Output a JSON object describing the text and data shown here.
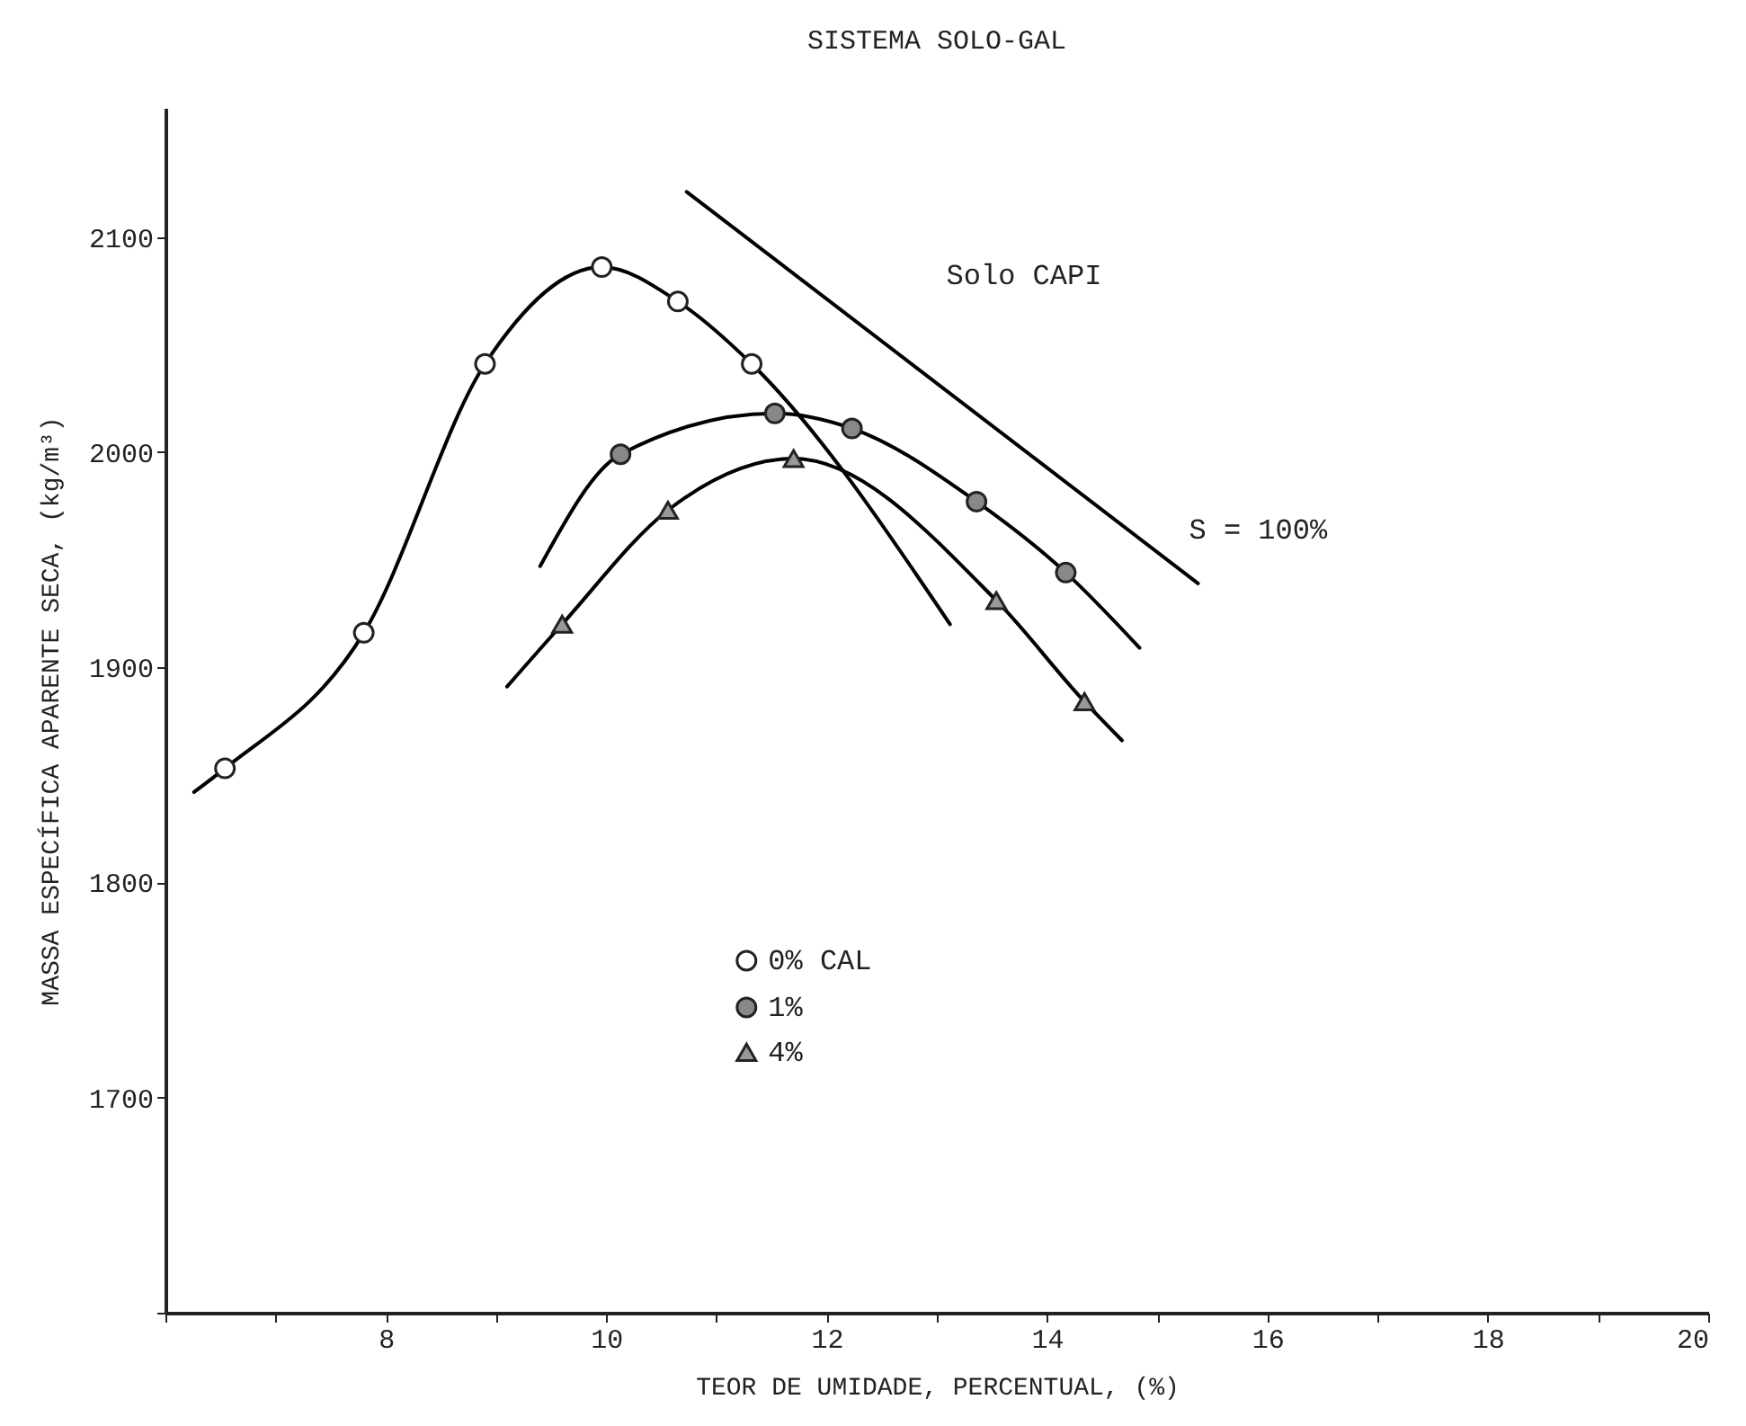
{
  "chart_data": {
    "type": "scatter",
    "title": "SISTEMA SOLO-GAL",
    "xlabel": "TEOR DE UMIDADE, PERCENTUAL, (%)",
    "ylabel": "MASSA ESPECÍFICA APARENTE SECA, (kg/m³)",
    "xlim": [
      6,
      20
    ],
    "xticks": [
      {
        "value": 6,
        "label": null
      },
      {
        "value": 7,
        "label": null
      },
      8,
      {
        "value": 9,
        "label": null
      },
      10,
      {
        "value": 11,
        "label": null
      },
      12,
      {
        "value": 13,
        "label": null
      },
      14,
      {
        "value": 15,
        "label": null
      },
      16,
      {
        "value": 17,
        "label": null
      },
      18,
      {
        "value": 19,
        "label": null
      },
      20
    ],
    "ylim": [
      1600,
      2160
    ],
    "yticks": [
      {
        "value": 1600,
        "label": null
      },
      1700,
      1800,
      1900,
      2000,
      2100
    ],
    "grid": false,
    "legend": "bottom",
    "legend_title": null,
    "series": [
      {
        "name": "0% CAL",
        "marker": "circle",
        "color": "#ffffff",
        "x": [
          6.54,
          7.8,
          8.9,
          9.96,
          10.65,
          11.32
        ],
        "values": [
          1853,
          1916,
          2041,
          2086,
          2070,
          2041
        ]
      },
      {
        "name": "1%",
        "marker": "circle",
        "color": "#888888",
        "x": [
          10.13,
          11.53,
          12.23,
          13.36,
          14.17
        ],
        "values": [
          1999,
          2018,
          2011,
          1977,
          1944
        ]
      },
      {
        "name": "4%",
        "marker": "triangle",
        "color": "#999999",
        "x": [
          9.6,
          10.56,
          11.7,
          13.54,
          14.34
        ],
        "values": [
          1920,
          1973,
          1997,
          1931,
          1884
        ]
      },
      {
        "type": "line",
        "color": "#000000",
        "x": [
          6.26,
          6.54,
          7.8,
          8.9,
          9.96,
          10.65,
          11.32,
          13.12
        ],
        "values": [
          1842,
          1853,
          1916,
          2041,
          2086,
          2070,
          2041,
          1920
        ]
      },
      {
        "type": "line",
        "color": "#000000",
        "x": [
          9.4,
          10.13,
          11.53,
          12.23,
          13.36,
          14.17,
          14.84
        ],
        "values": [
          1947,
          1999,
          2018,
          2011,
          1977,
          1944,
          1909
        ]
      },
      {
        "type": "line",
        "color": "#000000",
        "x": [
          9.1,
          9.6,
          10.56,
          11.7,
          13.54,
          14.34,
          14.68
        ],
        "values": [
          1891,
          1920,
          1973,
          1997,
          1931,
          1884,
          1866
        ]
      },
      {
        "name": "S = 100%",
        "type": "line",
        "color": "#000000",
        "x": [
          10.73,
          15.37
        ],
        "values": [
          2121,
          1939
        ]
      }
    ],
    "annotations": [
      "Solo CAPI"
    ]
  }
}
